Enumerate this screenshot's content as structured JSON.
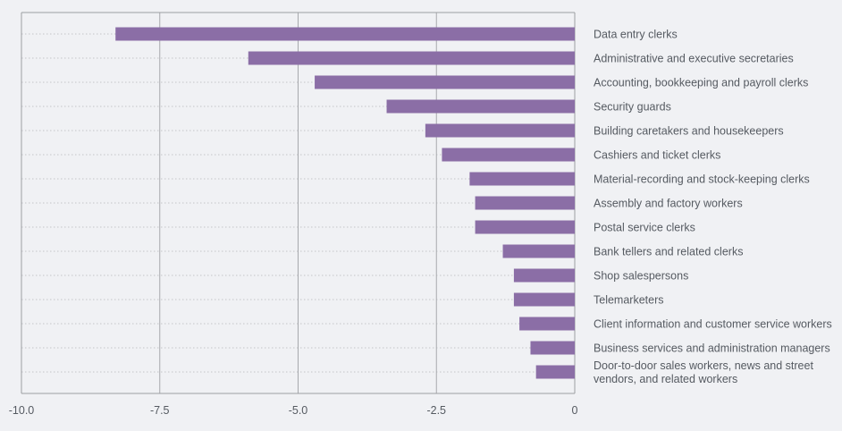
{
  "chart_data": {
    "type": "bar",
    "orientation": "horizontal",
    "title": "",
    "xlabel": "",
    "ylabel": "",
    "xlim": [
      -10,
      0
    ],
    "x_ticks": [
      -10,
      -7.5,
      -5,
      -2.5,
      0
    ],
    "x_tick_labels": [
      "-10.0",
      "-7.5",
      "-5.0",
      "-2.5",
      "0"
    ],
    "categories": [
      "Data entry clerks",
      "Administrative and executive secretaries",
      "Accounting, bookkeeping and payroll clerks",
      "Security guards",
      "Building caretakers and housekeepers",
      "Cashiers and ticket clerks",
      "Material-recording and stock-keeping clerks",
      "Assembly and factory workers",
      "Postal service clerks",
      "Bank tellers and related clerks",
      "Shop salespersons",
      "Telemarketers",
      "Client information and customer service workers",
      "Business services and administration managers",
      "Door-to-door sales workers, news and street vendors, and related workers"
    ],
    "category_label_lines": [
      [
        "Data entry clerks"
      ],
      [
        "Administrative and executive secretaries"
      ],
      [
        "Accounting, bookkeeping and payroll clerks"
      ],
      [
        "Security guards"
      ],
      [
        "Building caretakers and housekeepers"
      ],
      [
        "Cashiers and ticket clerks"
      ],
      [
        "Material-recording and stock-keeping clerks"
      ],
      [
        "Assembly and factory workers"
      ],
      [
        "Postal service clerks"
      ],
      [
        "Bank tellers and related clerks"
      ],
      [
        "Shop salespersons"
      ],
      [
        "Telemarketers"
      ],
      [
        "Client information and customer service workers"
      ],
      [
        "Business services and administration managers"
      ],
      [
        "Door-to-door sales workers, news and street",
        "vendors, and related workers"
      ]
    ],
    "values": [
      -8.3,
      -5.9,
      -4.7,
      -3.4,
      -2.7,
      -2.4,
      -1.9,
      -1.8,
      -1.8,
      -1.3,
      -1.1,
      -1.1,
      -1.0,
      -0.8,
      -0.7
    ],
    "bar_color": "#8b6ea6",
    "grid": true,
    "legend": "none"
  }
}
